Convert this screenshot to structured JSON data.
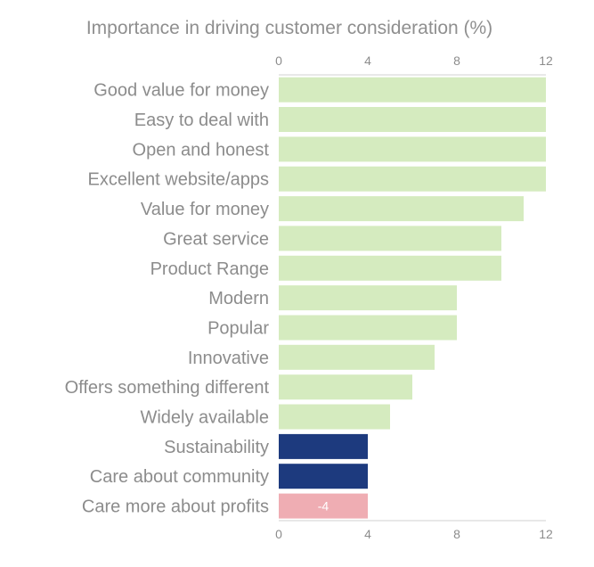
{
  "chart_data": {
    "type": "bar",
    "orientation": "horizontal",
    "title": "Importance in driving customer consideration (%)",
    "xlabel": "",
    "ylabel": "",
    "xlim": [
      0,
      12
    ],
    "xticks": [
      0,
      4,
      8,
      12
    ],
    "grid": false,
    "categories": [
      "Good value for money",
      "Easy to deal with",
      "Open and honest",
      "Excellent website/apps",
      "Value for money",
      "Great service",
      "Product Range",
      "Modern",
      "Popular",
      "Innovative",
      "Offers something different",
      "Widely available",
      "Sustainability",
      "Care about community",
      "Care more about profits"
    ],
    "values": [
      12,
      12,
      12,
      12,
      11,
      10,
      10,
      8,
      8,
      7,
      6,
      5,
      4,
      4,
      -4
    ],
    "bar_groups": [
      "light",
      "light",
      "light",
      "light",
      "light",
      "light",
      "light",
      "light",
      "light",
      "light",
      "light",
      "light",
      "dark",
      "dark",
      "negative"
    ],
    "data_labels": [
      "",
      "",
      "",
      "",
      "",
      "",
      "",
      "",
      "",
      "",
      "",
      "",
      "",
      "",
      "-4"
    ],
    "colors": {
      "light": "#d5ebbf",
      "dark": "#1d3a7e",
      "negative": "#efadb3",
      "axis": "#cccccc",
      "text": "#8c8c8c"
    }
  }
}
